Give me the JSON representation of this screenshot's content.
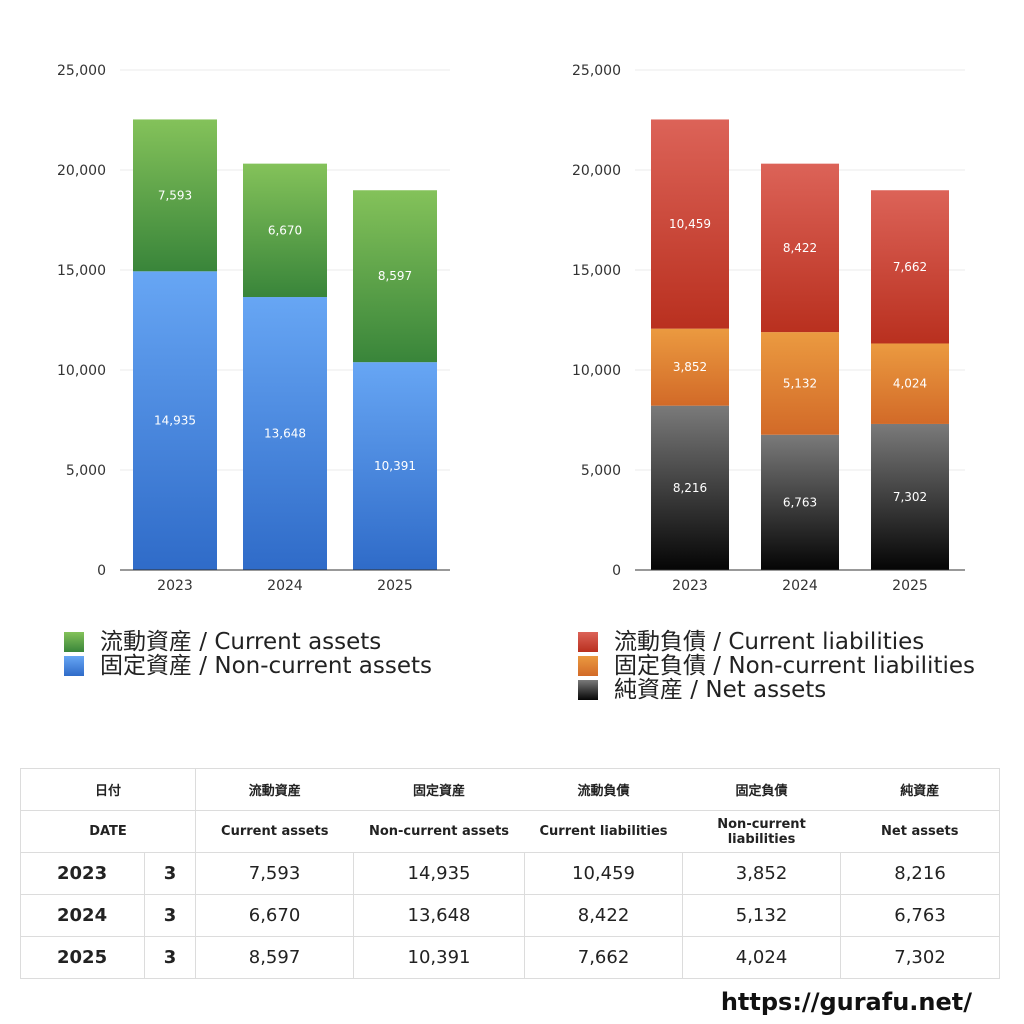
{
  "chart_data": [
    {
      "type": "bar",
      "stacked": true,
      "categories": [
        "2023",
        "2024",
        "2025"
      ],
      "ylim": [
        0,
        25000
      ],
      "yticks": [
        "0",
        "5,000",
        "10,000",
        "15,000",
        "20,000",
        "25,000"
      ],
      "ytick_values": [
        0,
        5000,
        10000,
        15000,
        20000,
        25000
      ],
      "grid": true,
      "series": [
        {
          "name": "固定資産 / Non-current assets",
          "values": [
            14935,
            13648,
            10391
          ],
          "labels": [
            "14,935",
            "13,648",
            "10,391"
          ],
          "color_top": "#67a6f4",
          "color_bottom": "#2f6bc8"
        },
        {
          "name": "流動資産 / Current assets",
          "values": [
            7593,
            6670,
            8597
          ],
          "labels": [
            "7,593",
            "6,670",
            "8,597"
          ],
          "color_top": "#84c25a",
          "color_bottom": "#39853a"
        }
      ]
    },
    {
      "type": "bar",
      "stacked": true,
      "categories": [
        "2023",
        "2024",
        "2025"
      ],
      "ylim": [
        0,
        25000
      ],
      "yticks": [
        "0",
        "5,000",
        "10,000",
        "15,000",
        "20,000",
        "25,000"
      ],
      "ytick_values": [
        0,
        5000,
        10000,
        15000,
        20000,
        25000
      ],
      "grid": true,
      "series": [
        {
          "name": "純資産 / Net assets",
          "values": [
            8216,
            6763,
            7302
          ],
          "labels": [
            "8,216",
            "6,763",
            "7,302"
          ],
          "color_top": "#7a7a7a",
          "color_bottom": "#050505"
        },
        {
          "name": "固定負債 / Non-current liabilities",
          "values": [
            3852,
            5132,
            4024
          ],
          "labels": [
            "3,852",
            "5,132",
            "4,024"
          ],
          "color_top": "#eb9a40",
          "color_bottom": "#d26a28"
        },
        {
          "name": "流動負債 / Current liabilities",
          "values": [
            10459,
            8422,
            7662
          ],
          "labels": [
            "10,459",
            "8,422",
            "7,662"
          ],
          "color_top": "#dc6358",
          "color_bottom": "#b9301f"
        }
      ]
    }
  ],
  "legend_left": [
    {
      "label": "流動資産 / Current assets",
      "color_top": "#84c25a",
      "color_bottom": "#39853a"
    },
    {
      "label": "固定資産 / Non-current assets",
      "color_top": "#67a6f4",
      "color_bottom": "#2f6bc8"
    }
  ],
  "legend_right": [
    {
      "label": "流動負債 / Current liabilities",
      "color_top": "#dc6358",
      "color_bottom": "#b9301f"
    },
    {
      "label": "固定負債 / Non-current liabilities",
      "color_top": "#eb9a40",
      "color_bottom": "#d26a28"
    },
    {
      "label": "純資産 / Net assets",
      "color_top": "#7a7a7a",
      "color_bottom": "#050505"
    }
  ],
  "table": {
    "header_jp": [
      "日付",
      "流動資産",
      "固定資産",
      "流動負債",
      "固定負債",
      "純資産"
    ],
    "header_en": [
      "DATE",
      "Current assets",
      "Non-current assets",
      "Current liabilities",
      "Non-current liabilities",
      "Net assets"
    ],
    "rows": [
      {
        "year": "2023",
        "month": "3",
        "values": [
          "7,593",
          "14,935",
          "10,459",
          "3,852",
          "8,216"
        ]
      },
      {
        "year": "2024",
        "month": "3",
        "values": [
          "6,670",
          "13,648",
          "8,422",
          "5,132",
          "6,763"
        ]
      },
      {
        "year": "2025",
        "month": "3",
        "values": [
          "8,597",
          "10,391",
          "7,662",
          "4,024",
          "7,302"
        ]
      }
    ]
  },
  "footer": {
    "site": "https://gurafu.net/"
  }
}
